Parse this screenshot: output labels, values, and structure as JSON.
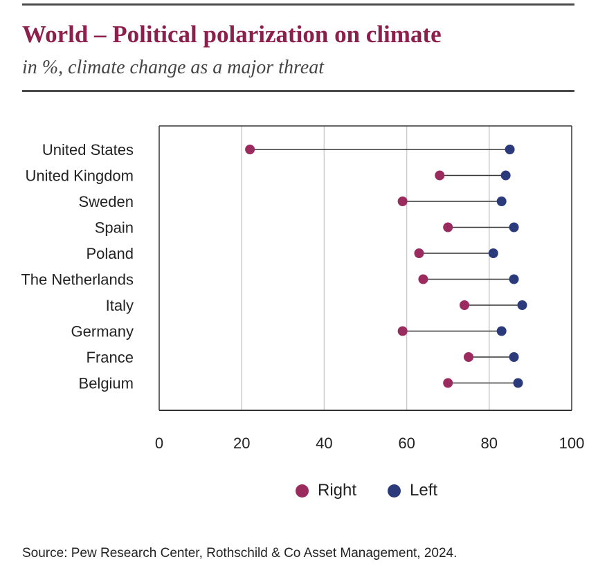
{
  "header": {
    "title": "World – Political polarization on climate",
    "subtitle": "in %, climate change as a major threat"
  },
  "legend": {
    "right_label": "Right",
    "left_label": "Left"
  },
  "source": "Source: Pew Research Center, Rothschild & Co Asset Management, 2024.",
  "colors": {
    "right": "#9b2a5e",
    "left": "#2b3a7a",
    "connector": "#333333",
    "grid": "#cccccc",
    "frame": "#333333"
  },
  "chart_data": {
    "type": "dumbbell",
    "title": "World – Political polarization on climate",
    "subtitle": "in %, climate change as a major threat",
    "xlim": [
      0,
      100
    ],
    "xticks": [
      0,
      20,
      40,
      60,
      80,
      100
    ],
    "grid": true,
    "legend_position": "bottom",
    "categories": [
      "United States",
      "United Kingdom",
      "Sweden",
      "Spain",
      "Poland",
      "The Netherlands",
      "Italy",
      "Germany",
      "France",
      "Belgium"
    ],
    "series": [
      {
        "name": "Right",
        "values": [
          22,
          68,
          59,
          70,
          63,
          64,
          74,
          59,
          75,
          70
        ]
      },
      {
        "name": "Left",
        "values": [
          85,
          84,
          83,
          86,
          81,
          86,
          88,
          83,
          86,
          87
        ]
      }
    ]
  }
}
